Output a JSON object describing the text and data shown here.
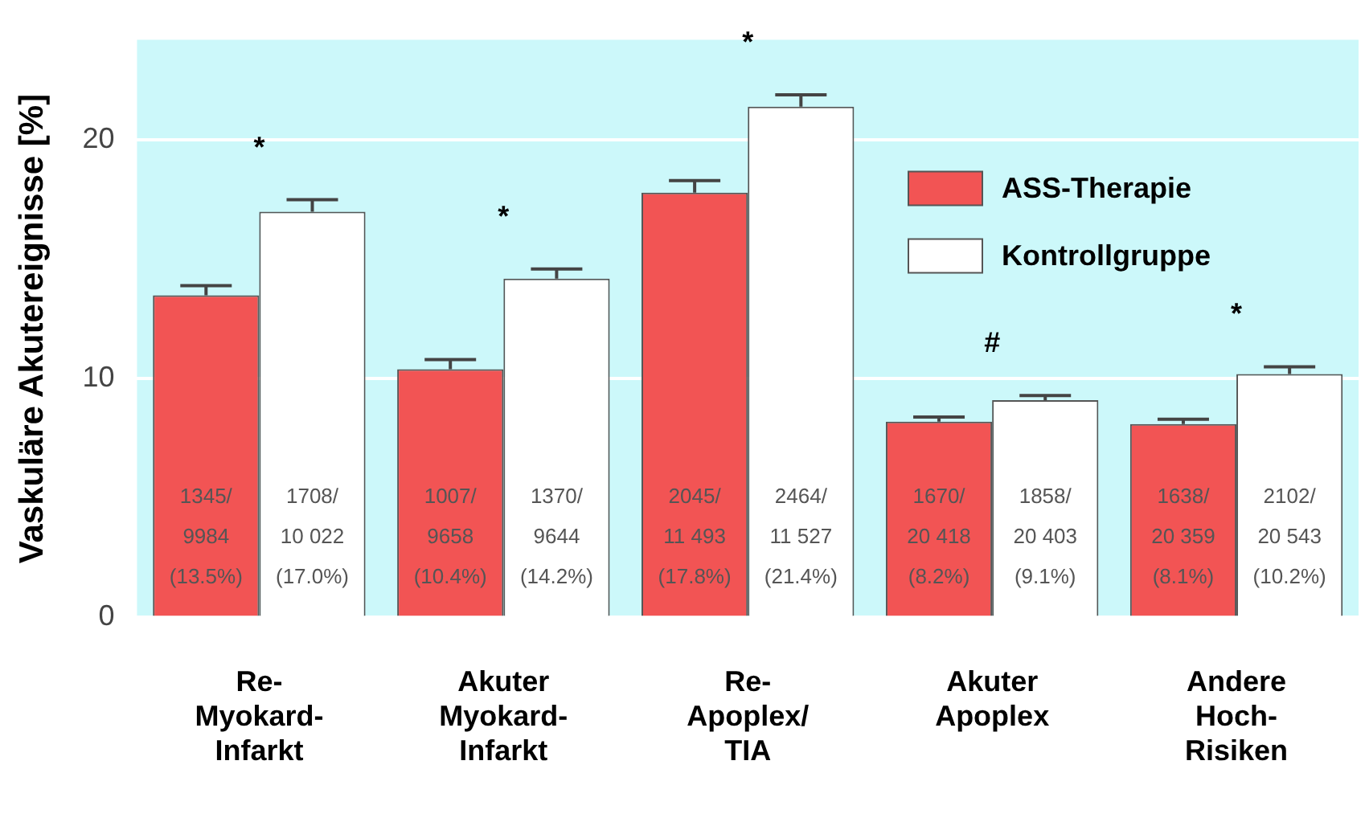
{
  "chart_data": {
    "type": "bar",
    "ylabel": "Vaskuläre Akutereignisse [%]",
    "categories": [
      "Re-\nMyokard-\nInfarkt",
      "Akuter\nMyokard-\nInfarkt",
      "Re-\nApoplex/\nTIA",
      "Akuter\nApoplex",
      "Andere\nHoch-\nRisiken"
    ],
    "series": [
      {
        "name": "ASS-Therapie",
        "color": "#f25454",
        "values": [
          13.5,
          10.4,
          17.8,
          8.2,
          8.1
        ],
        "errors": [
          [
            13.5,
            13.9
          ],
          [
            10.4,
            10.8
          ],
          [
            17.8,
            18.3
          ],
          [
            8.2,
            8.4
          ],
          [
            8.1,
            8.3
          ]
        ],
        "value_labels": [
          "1345/\n9984\n(13.5%)",
          "1007/\n9658\n(10.4%)",
          "2045/\n11 493\n(17.8%)",
          "1670/\n20 418\n(8.2%)",
          "1638/\n20 359\n(8.1%)"
        ]
      },
      {
        "name": "Kontrollgruppe",
        "color": "#ffffff",
        "values": [
          17.0,
          14.2,
          21.4,
          9.1,
          10.2
        ],
        "errors": [
          [
            17.0,
            17.5
          ],
          [
            14.2,
            14.6
          ],
          [
            21.4,
            21.9
          ],
          [
            9.1,
            9.3
          ],
          [
            10.2,
            10.5
          ]
        ],
        "value_labels": [
          "1708/\n10 022\n(17.0%)",
          "1370/\n9644\n(14.2%)",
          "2464/\n11 527\n(21.4%)",
          "1858/\n20 403\n(9.1%)",
          "2102/\n20 543\n(10.2%)"
        ]
      }
    ],
    "annotations": [
      "*",
      "*",
      "*",
      "#",
      "*"
    ],
    "ylim": [
      0,
      24.2
    ],
    "yticks": [
      0,
      10,
      20
    ],
    "grid": "y",
    "legend": "top right"
  }
}
